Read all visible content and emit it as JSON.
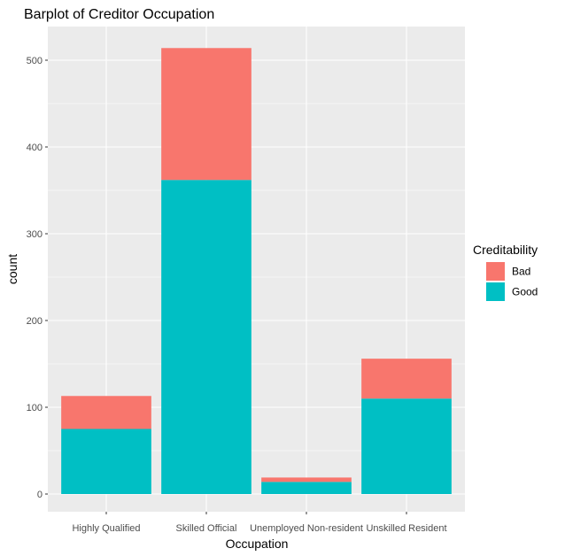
{
  "chart_data": {
    "type": "bar",
    "stacked": true,
    "title": "Barplot of Creditor Occupation",
    "xlabel": "Occupation",
    "ylabel": "count",
    "categories": [
      "Highly Qualified",
      "Skilled Official",
      "Unemployed Non-resident",
      "Unskilled Resident"
    ],
    "series": [
      {
        "name": "Good",
        "values": [
          75,
          362,
          14,
          110
        ],
        "color": "#00BFC4"
      },
      {
        "name": "Bad",
        "values": [
          38,
          152,
          5,
          46
        ],
        "color": "#F8766D"
      }
    ],
    "ylim": [
      0,
      525
    ],
    "yticks": [
      0,
      100,
      200,
      300,
      400,
      500
    ],
    "grid": true,
    "legend": {
      "title": "Creditability",
      "position": "right",
      "entries": [
        "Bad",
        "Good"
      ]
    },
    "colors": {
      "panel_background": "#EBEBEB",
      "grid": "#FFFFFF",
      "Bad": "#F8766D",
      "Good": "#00BFC4"
    }
  }
}
